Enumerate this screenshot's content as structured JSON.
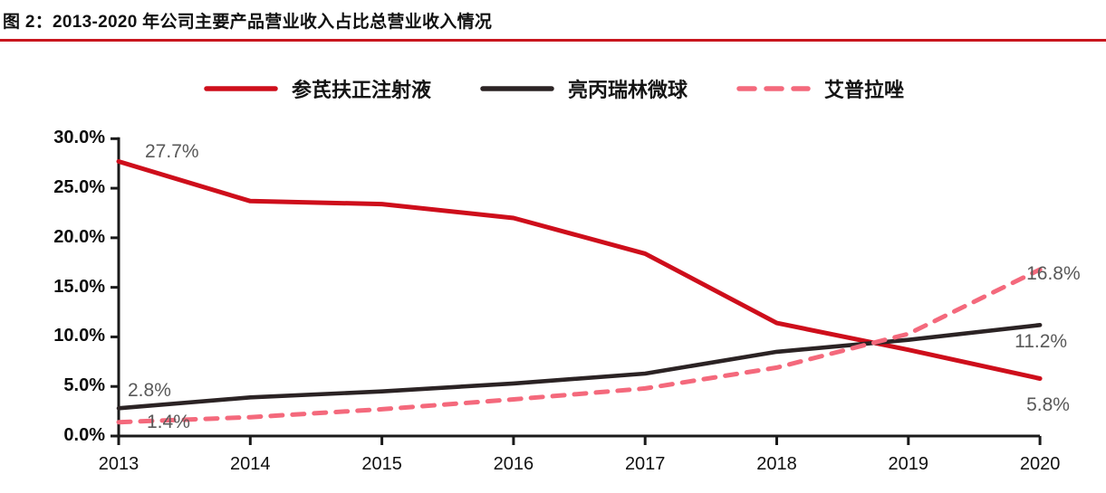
{
  "title": {
    "text": "图 2：2013-2020 年公司主要产品营业收入占比总营业收入情况"
  },
  "colors": {
    "title_underline": "#C8161E",
    "axis": "#1A1A1A",
    "series_red": "#CE0E1B",
    "series_black": "#2B2324",
    "series_pink": "#F4697C",
    "data_label_gray": "#595959"
  },
  "legend": [
    {
      "label": "参芪扶正注射液",
      "style": "solid",
      "color": "#CE0E1B"
    },
    {
      "label": "亮丙瑞林微球",
      "style": "solid",
      "color": "#2B2324"
    },
    {
      "label": "艾普拉唑",
      "style": "dashed",
      "color": "#F4697C"
    }
  ],
  "chart_data": {
    "type": "line",
    "categories": [
      "2013",
      "2014",
      "2015",
      "2016",
      "2017",
      "2018",
      "2019",
      "2020"
    ],
    "series": [
      {
        "name": "参芪扶正注射液",
        "color": "#CE0E1B",
        "dash": false,
        "values": [
          27.7,
          23.7,
          23.4,
          22.0,
          18.4,
          11.4,
          8.7,
          5.8
        ]
      },
      {
        "name": "亮丙瑞林微球",
        "color": "#2B2324",
        "dash": false,
        "values": [
          2.8,
          3.9,
          4.5,
          5.3,
          6.3,
          8.5,
          9.7,
          11.2
        ]
      },
      {
        "name": "艾普拉唑",
        "color": "#F4697C",
        "dash": true,
        "values": [
          1.4,
          1.9,
          2.7,
          3.7,
          4.8,
          6.9,
          10.3,
          16.8
        ]
      }
    ],
    "title": "图 2：2013-2020 年公司主要产品营业收入占比总营业收入情况",
    "xlabel": "",
    "ylabel": "",
    "ylim": [
      0,
      30
    ],
    "ytick_step": 5,
    "ytick_labels": [
      "0.0%",
      "5.0%",
      "10.0%",
      "15.0%",
      "20.0%",
      "25.0%",
      "30.0%"
    ],
    "grid": false,
    "legend_position": "top",
    "annotations": [
      {
        "text": "27.7%",
        "series": 0,
        "point": 0
      },
      {
        "text": "2.8%",
        "series": 1,
        "point": 0
      },
      {
        "text": "1.4%",
        "series": 2,
        "point": 0
      },
      {
        "text": "16.8%",
        "series": 2,
        "point": 7
      },
      {
        "text": "11.2%",
        "series": 1,
        "point": 7
      },
      {
        "text": "5.8%",
        "series": 0,
        "point": 7
      }
    ]
  }
}
